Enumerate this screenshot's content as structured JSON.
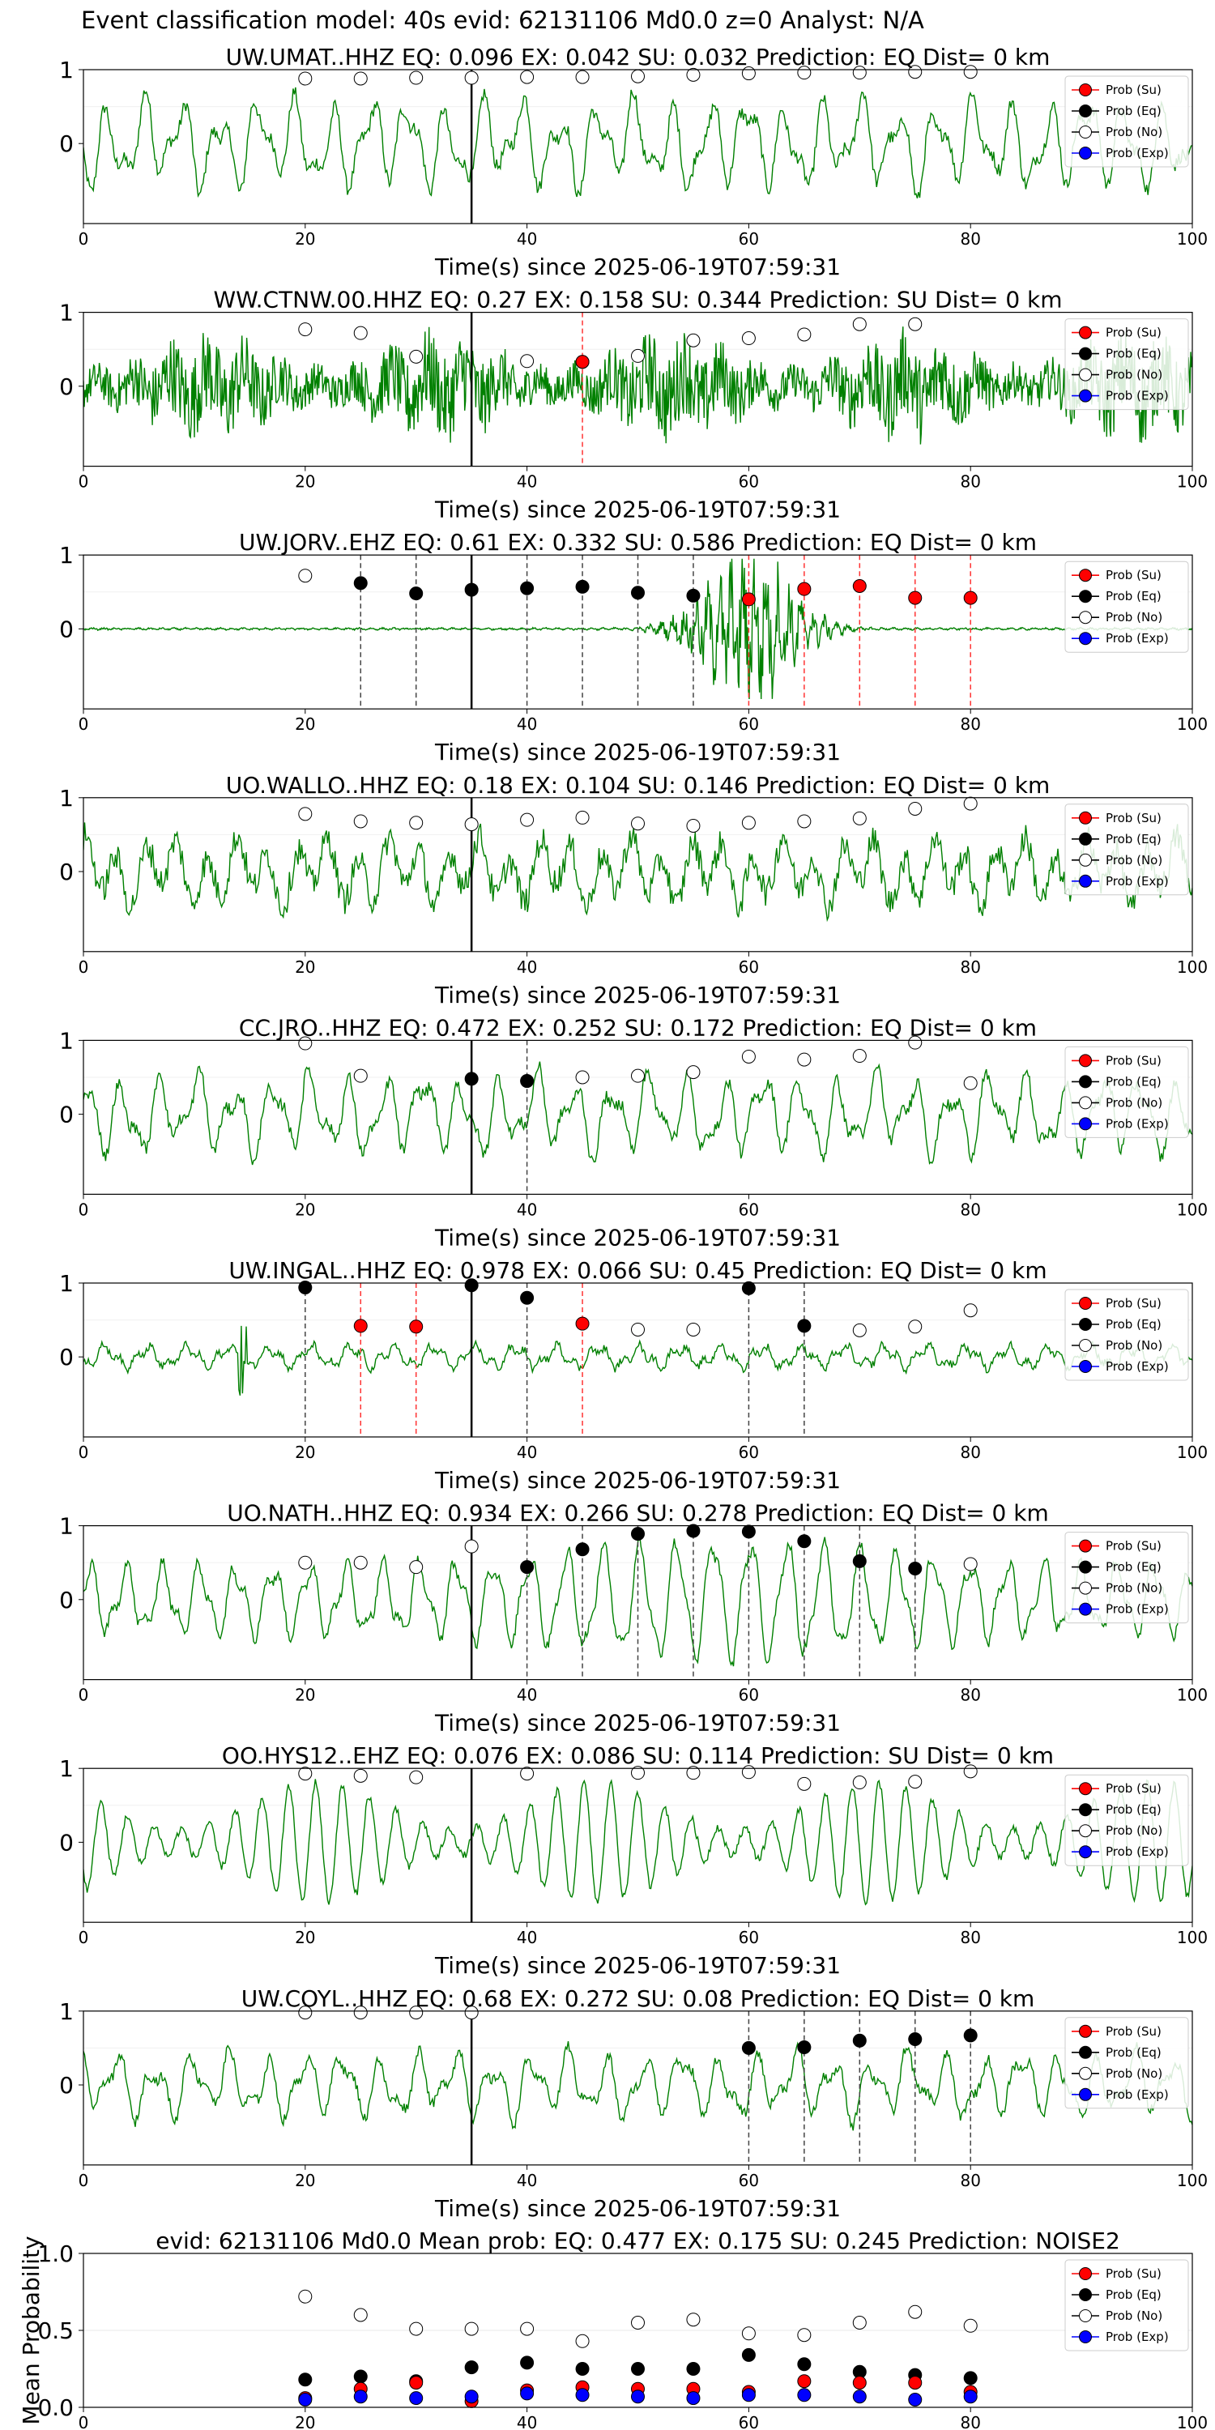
{
  "suptitle": "Event classification model: 40s evid: 62131106 Md0.0 z=0 Analyst: N/A",
  "xlabel": "Time(s) since 2025-06-19T07:59:31",
  "mean_ylabel": "Mean Probability",
  "legend": [
    "Prob (Su)",
    "Prob (Eq)",
    "Prob (No)",
    "Prob (Exp)"
  ],
  "colors": {
    "waveform": "#008000",
    "su": "#ff0000",
    "eq": "#000000",
    "no": "#ffffff",
    "exp": "#0000ff",
    "pick_su": "#ff3333",
    "pick_eq": "#444444"
  },
  "chart_data": [
    {
      "type": "line",
      "title": "UW.UMAT..HHZ   EQ: 0.096  EX: 0.042  SU: 0.032   Prediction: EQ    Dist= 0 km",
      "wave": "lowfreq",
      "amp": 0.8,
      "xlim": [
        0,
        100
      ],
      "yticks": [
        0,
        1
      ],
      "x": [
        20,
        25,
        30,
        35,
        40,
        45,
        50,
        55,
        60,
        65,
        70,
        75,
        80
      ],
      "su": [],
      "eq": [],
      "exp": [],
      "no": [
        0.88,
        0.88,
        0.89,
        0.89,
        0.9,
        0.9,
        0.91,
        0.93,
        0.95,
        0.96,
        0.96,
        0.97,
        0.97
      ],
      "pick_su": [],
      "pick_eq": []
    },
    {
      "type": "line",
      "title": "WW.CTNW.00.HHZ   EQ: 0.27  EX: 0.158  SU: 0.344   Prediction: SU    Dist= 0 km",
      "wave": "noisy",
      "amp": 0.85,
      "xlim": [
        0,
        100
      ],
      "yticks": [
        0,
        1
      ],
      "x": [
        20,
        25,
        30,
        40,
        45,
        50,
        55,
        60,
        65,
        70,
        75
      ],
      "su": [
        [
          45,
          0.33
        ]
      ],
      "eq": [],
      "exp": [],
      "no": [
        0.77,
        0.72,
        0.4,
        0.34,
        0.33,
        0.41,
        0.62,
        0.65,
        0.7,
        0.84,
        0.84
      ],
      "pick_su": [
        45
      ],
      "pick_eq": []
    },
    {
      "type": "line",
      "title": "UW.JORV..EHZ   EQ: 0.61  EX: 0.332  SU: 0.586   Prediction: EQ    Dist= 0 km",
      "wave": "event",
      "amp": 1.0,
      "xlim": [
        0,
        100
      ],
      "yticks": [
        0,
        1
      ],
      "x": [
        20,
        25,
        30,
        35,
        40,
        45,
        50,
        55,
        60,
        65,
        70,
        75,
        80
      ],
      "su": [
        [
          60,
          0.4
        ],
        [
          65,
          0.54
        ],
        [
          70,
          0.58
        ],
        [
          75,
          0.42
        ],
        [
          80,
          0.42
        ]
      ],
      "eq": [
        [
          25,
          0.62
        ],
        [
          30,
          0.48
        ],
        [
          35,
          0.53
        ],
        [
          40,
          0.55
        ],
        [
          45,
          0.57
        ],
        [
          50,
          0.49
        ],
        [
          55,
          0.45
        ]
      ],
      "no": [
        [
          20,
          0.72
        ]
      ],
      "exp": [],
      "pick_su": [
        60,
        65,
        70,
        75,
        80
      ],
      "pick_eq": [
        25,
        30,
        40,
        45,
        50,
        55
      ]
    },
    {
      "type": "line",
      "title": "UO.WALLO..HHZ   EQ: 0.18  EX: 0.104  SU: 0.146   Prediction: EQ    Dist= 0 km",
      "wave": "midnoise",
      "amp": 0.7,
      "xlim": [
        0,
        100
      ],
      "yticks": [
        0,
        1
      ],
      "x": [
        20,
        25,
        30,
        35,
        40,
        45,
        50,
        55,
        60,
        65,
        70,
        75,
        80
      ],
      "su": [],
      "eq": [],
      "exp": [],
      "no": [
        0.78,
        0.68,
        0.66,
        0.64,
        0.7,
        0.73,
        0.65,
        0.62,
        0.66,
        0.68,
        0.72,
        0.85,
        0.92
      ],
      "pick_su": [],
      "pick_eq": []
    },
    {
      "type": "line",
      "title": "CC.JRO..HHZ   EQ: 0.472  EX: 0.252  SU: 0.172   Prediction: EQ    Dist= 0 km",
      "wave": "lowfreq",
      "amp": 0.75,
      "xlim": [
        0,
        100
      ],
      "yticks": [
        0,
        1
      ],
      "x": [
        20,
        25,
        30,
        35,
        40,
        45,
        50,
        55,
        60,
        65,
        70,
        75,
        80
      ],
      "su": [],
      "eq": [
        [
          35,
          0.48
        ],
        [
          40,
          0.45
        ]
      ],
      "exp": [],
      "no": [
        [
          20,
          0.96
        ],
        [
          25,
          0.52
        ],
        [
          45,
          0.5
        ],
        [
          50,
          0.52
        ],
        [
          55,
          0.57
        ],
        [
          60,
          0.78
        ],
        [
          65,
          0.74
        ],
        [
          70,
          0.79
        ],
        [
          75,
          0.97
        ],
        [
          80,
          0.42
        ]
      ],
      "pick_su": [],
      "pick_eq": [
        40
      ]
    },
    {
      "type": "line",
      "title": "UW.INGAL..HHZ   EQ: 0.978  EX: 0.066  SU: 0.45   Prediction: EQ    Dist= 0 km",
      "wave": "spiky",
      "amp": 0.55,
      "xlim": [
        0,
        100
      ],
      "yticks": [
        0,
        1
      ],
      "x": [
        20,
        25,
        30,
        35,
        40,
        45,
        50,
        55,
        60,
        65,
        70,
        75,
        80
      ],
      "su": [
        [
          25,
          0.42
        ],
        [
          30,
          0.41
        ],
        [
          45,
          0.45
        ]
      ],
      "eq": [
        [
          20,
          0.94
        ],
        [
          35,
          0.97
        ],
        [
          40,
          0.8
        ],
        [
          60,
          0.93
        ],
        [
          65,
          0.42
        ]
      ],
      "no": [
        [
          50,
          0.37
        ],
        [
          55,
          0.37
        ],
        [
          70,
          0.36
        ],
        [
          75,
          0.41
        ],
        [
          80,
          0.63
        ]
      ],
      "exp": [],
      "pick_su": [
        25,
        30,
        45
      ],
      "pick_eq": [
        20,
        40,
        60,
        65
      ]
    },
    {
      "type": "line",
      "title": "UO.NATH..HHZ   EQ: 0.934  EX: 0.266  SU: 0.278   Prediction: EQ    Dist= 0 km",
      "wave": "lowfreq_big",
      "amp": 0.95,
      "xlim": [
        0,
        100
      ],
      "yticks": [
        0,
        1
      ],
      "x": [
        20,
        25,
        30,
        35,
        40,
        45,
        50,
        55,
        60,
        65,
        70,
        75,
        80
      ],
      "su": [],
      "eq": [
        [
          40,
          0.44
        ],
        [
          45,
          0.68
        ],
        [
          50,
          0.89
        ],
        [
          55,
          0.93
        ],
        [
          60,
          0.92
        ],
        [
          65,
          0.79
        ],
        [
          70,
          0.52
        ],
        [
          75,
          0.42
        ]
      ],
      "no": [
        [
          20,
          0.5
        ],
        [
          25,
          0.5
        ],
        [
          30,
          0.44
        ],
        [
          35,
          0.72
        ],
        [
          80,
          0.48
        ]
      ],
      "exp": [],
      "pick_su": [],
      "pick_eq": [
        40,
        45,
        50,
        55,
        60,
        65,
        70,
        75
      ]
    },
    {
      "type": "line",
      "title": "OO.HYS12..EHZ   EQ: 0.076  EX: 0.086  SU: 0.114   Prediction: SU    Dist= 0 km",
      "wave": "periodic",
      "amp": 0.9,
      "xlim": [
        0,
        100
      ],
      "yticks": [
        0,
        1
      ],
      "x": [
        20,
        25,
        30,
        40,
        50,
        55,
        60,
        65,
        70,
        75,
        80
      ],
      "su": [],
      "eq": [],
      "exp": [],
      "no": [
        0.93,
        0.9,
        0.88,
        0.93,
        0.94,
        0.94,
        0.95,
        0.79,
        0.81,
        0.82,
        0.96
      ],
      "pick_su": [],
      "pick_eq": []
    },
    {
      "type": "line",
      "title": "UW.COYL..HHZ   EQ: 0.68  EX: 0.272  SU: 0.08   Prediction: EQ    Dist= 0 km",
      "wave": "lowfreq",
      "amp": 0.65,
      "xlim": [
        0,
        100
      ],
      "yticks": [
        0,
        1
      ],
      "x": [
        20,
        25,
        30,
        35,
        60,
        65,
        70,
        75,
        80
      ],
      "su": [],
      "eq": [
        [
          60,
          0.5
        ],
        [
          65,
          0.51
        ],
        [
          70,
          0.6
        ],
        [
          75,
          0.62
        ],
        [
          80,
          0.67
        ]
      ],
      "no": [
        [
          20,
          0.98
        ],
        [
          25,
          0.98
        ],
        [
          30,
          0.98
        ],
        [
          35,
          0.98
        ]
      ],
      "exp": [],
      "pick_su": [],
      "pick_eq": [
        60,
        65,
        70,
        75,
        80
      ]
    },
    {
      "type": "scatter",
      "title": "evid: 62131106  Md0.0   Mean prob:    EQ: 0.477  EX: 0.175  SU: 0.245   Prediction: NOISE2",
      "xlim": [
        0,
        100
      ],
      "ylim": [
        0,
        1
      ],
      "yticks": [
        0.0,
        0.5,
        1.0
      ],
      "x": [
        20,
        25,
        30,
        35,
        40,
        45,
        50,
        55,
        60,
        65,
        70,
        75,
        80
      ],
      "no": [
        0.72,
        0.6,
        0.51,
        0.51,
        0.51,
        0.43,
        0.55,
        0.57,
        0.48,
        0.47,
        0.55,
        0.62,
        0.53
      ],
      "eq": [
        0.18,
        0.2,
        0.17,
        0.26,
        0.29,
        0.25,
        0.25,
        0.25,
        0.34,
        0.28,
        0.23,
        0.21,
        0.19
      ],
      "su": [
        0.06,
        0.12,
        0.16,
        0.04,
        0.11,
        0.13,
        0.12,
        0.12,
        0.1,
        0.17,
        0.16,
        0.16,
        0.1
      ],
      "exp": [
        0.05,
        0.07,
        0.06,
        0.07,
        0.09,
        0.08,
        0.07,
        0.06,
        0.08,
        0.08,
        0.07,
        0.05,
        0.07
      ]
    }
  ]
}
